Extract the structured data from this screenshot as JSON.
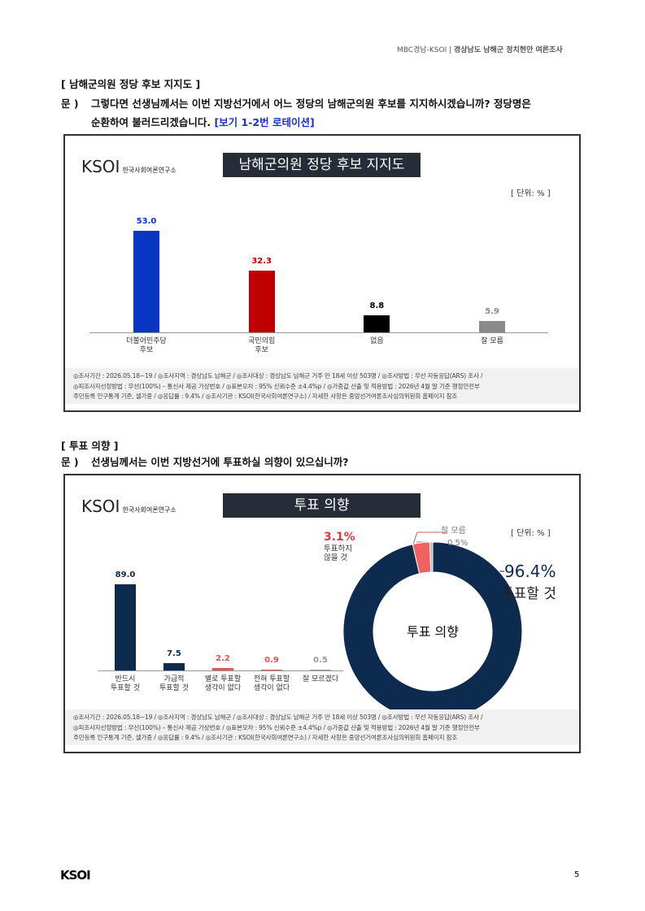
{
  "header": {
    "left": "MBC경남-KSOI",
    "right": "경상남도 남해군 정치현안 여론조사"
  },
  "sections": [
    {
      "heading": "[ 남해군의원 정당 후보 지지도 ]",
      "q_label": "문 )",
      "question": [
        "그렇다면 선생님께서는 이번 지방선거에서 어느 정당의 남해군의원 후보를 지지하시겠습니까? 정당명은",
        "순환하여 불러드리겠습니다."
      ],
      "note": "[보기 1-2번 로테이션]"
    },
    {
      "heading": "[ 투표 의향 ]",
      "q_label": "문 )",
      "question": [
        "선생님께서는 이번 지방선거에 투표하실 의향이 있으십니까?"
      ]
    }
  ],
  "chart_data": [
    {
      "type": "bar",
      "title": "남해군의원 정당 후보 지지도",
      "logo": {
        "mark": "KSOI",
        "name": "한국사회여론연구소"
      },
      "unit": "[ 단위: % ]",
      "categories": [
        "더불어민주당\n후보",
        "국민의힘\n후보",
        "없음",
        "잘 모름"
      ],
      "values": [
        53.0,
        32.3,
        8.8,
        5.9
      ],
      "value_labels": [
        "53.0",
        "32.3",
        "8.8",
        "5.9"
      ],
      "colors": [
        "#0a36c4",
        "#c00000",
        "#000000",
        "#8a8a8a"
      ],
      "ylim": [
        0,
        56
      ],
      "notes": [
        "◎조사기간 : 2026.05.18~19 / ◎조사지역 : 경상남도 남해군 / ◎조사대상 : 경상남도 남해군 거주 만 18세 이상 503명 / ◎조사방법 : 무선 자동응답(ARS) 조사 /",
        "◎피조사자선정방법 : 무선(100%) – 통신사 제공 가상번호 / ◎표본오차 : 95% 신뢰수준 ±4.4%p / ◎가중값 산출 및 적용방법 : 2026년 4월 말 기준 행정안전부",
        "주민등록 인구통계 기준, 셀가중 / ◎응답률 : 9.4% / ◎조사기관 : KSOI(한국사회여론연구소) / 자세한 사항은 중앙선거여론조사심의위원회 홈페이지 참조"
      ]
    },
    {
      "type": "bar",
      "title": "투표 의향",
      "logo": {
        "mark": "KSOI",
        "name": "한국사회여론연구소"
      },
      "unit": "[ 단위: % ]",
      "categories": [
        "반드시\n투표할 것",
        "가급적\n투표할 것",
        "별로 투표할\n생각이 없다",
        "전혀 투표할\n생각이 없다",
        "잘 모르겠다"
      ],
      "values": [
        89.0,
        7.5,
        2.2,
        0.9,
        0.5
      ],
      "value_labels": [
        "89.0",
        "7.5",
        "2.2",
        "0.9",
        "0.5"
      ],
      "colors": [
        "#0d2b4e",
        "#0d2b4e",
        "#e05555",
        "#e05555",
        "#9a9a9a"
      ],
      "ylim": [
        0,
        92
      ],
      "notes": [
        "◎조사기간 : 2026.05.18~19 / ◎조사지역 : 경상남도 남해군 / ◎조사대상 : 경상남도 남해군 거주 만 18세 이상 503명 / ◎조사방법 : 무선 자동응답(ARS) 조사 /",
        "◎피조사자선정방법 : 무선(100%) – 통신사 제공 가상번호 / ◎표본오차 : 95% 신뢰수준 ±4.4%p / ◎가중값 산출 및 적용방법 : 2026년 4월 말 기준 행정안전부",
        "주민등록 인구통계 기준, 셀가중 / ◎응답률 : 9.4% / ◎조사기관 : KSOI(한국사회여론연구소) / 자세한 사항은 중앙선거여론조사심의위원회 홈페이지 참조"
      ]
    },
    {
      "type": "donut",
      "center_label": "투표 의향",
      "categories": [
        "투표할 것",
        "투표하지\n않을 것",
        "잘 모름"
      ],
      "values": [
        96.4,
        3.1,
        0.5
      ],
      "value_labels": [
        "96.4%",
        "3.1%",
        "0.5%"
      ],
      "colors": [
        "#0d2b4e",
        "#f06262",
        "#b8b8b8"
      ]
    }
  ],
  "footer": {
    "logo": "KSOI",
    "page": "5"
  }
}
